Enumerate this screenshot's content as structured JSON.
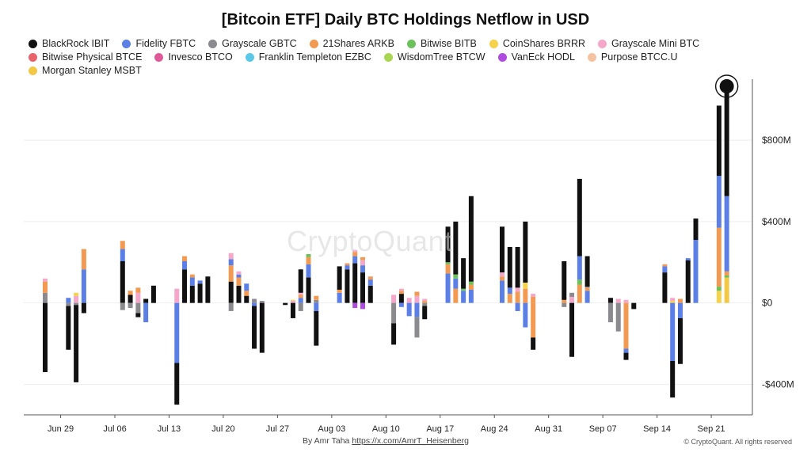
{
  "chart_data": {
    "type": "bar",
    "title": "[Bitcoin ETF] Daily BTC Holdings Netflow in USD",
    "stacked": true,
    "y_unit": "USD (millions)",
    "ylim": [
      -550,
      1100
    ],
    "y_ticks": [
      {
        "value": -400,
        "label": "-$400M"
      },
      {
        "value": 0,
        "label": "$0"
      },
      {
        "value": 400,
        "label": "$400M"
      },
      {
        "value": 800,
        "label": "$800M"
      }
    ],
    "x_ticks": [
      "Jun 29",
      "Jul 06",
      "Jul 13",
      "Jul 20",
      "Jul 27",
      "Aug 03",
      "Aug 10",
      "Aug 17",
      "Aug 24",
      "Aug 31",
      "Sep 07",
      "Sep 14",
      "Sep 21"
    ],
    "start_date": "2025-06-27",
    "legend_position": "top",
    "grid": true,
    "series": [
      {
        "name": "BlackRock IBIT",
        "color": "#111111"
      },
      {
        "name": "Fidelity FBTC",
        "color": "#5b7fe5"
      },
      {
        "name": "Grayscale GBTC",
        "color": "#8a8a8f"
      },
      {
        "name": "21Shares ARKB",
        "color": "#f39a52"
      },
      {
        "name": "Bitwise BITB",
        "color": "#6cc25a"
      },
      {
        "name": "CoinShares BRRR",
        "color": "#f5d24a"
      },
      {
        "name": "Grayscale Mini BTC",
        "color": "#f5a7c9"
      },
      {
        "name": "Bitwise Physical BTCE",
        "color": "#e8636a"
      },
      {
        "name": "Invesco BTCO",
        "color": "#e05a9a"
      },
      {
        "name": "Franklin Templeton EZBC",
        "color": "#5bc8e8"
      },
      {
        "name": "WisdomTree BTCW",
        "color": "#a9d652"
      },
      {
        "name": "VanEck HODL",
        "color": "#b04be0"
      },
      {
        "name": "Purpose BTCC.U",
        "color": "#f6c3a0"
      },
      {
        "name": "Morgan Stanley MSBT",
        "color": "#f2c844"
      }
    ],
    "days": [
      {
        "date": "2025-06-27",
        "flows": {
          "GBTC": 50,
          "ARKB": 55,
          "MINI": 15,
          "IBIT": -340
        }
      },
      {
        "date": "2025-06-30",
        "flows": {
          "FBTC": 25,
          "GBTC": -15,
          "IBIT": -215
        }
      },
      {
        "date": "2025-07-01",
        "flows": {
          "MINI": 35,
          "BRRR": 15,
          "GBTC": -10,
          "IBIT": -380
        }
      },
      {
        "date": "2025-07-02",
        "flows": {
          "FBTC": 165,
          "ARKB": 100,
          "IBIT": -50
        }
      },
      {
        "date": "2025-07-07",
        "flows": {
          "IBIT": 205,
          "FBTC": 60,
          "ARKB": 40,
          "GBTC": -35
        }
      },
      {
        "date": "2025-07-08",
        "flows": {
          "IBIT": 40,
          "ARKB": 20,
          "GBTC": -25
        }
      },
      {
        "date": "2025-07-09",
        "flows": {
          "MINI": 50,
          "ARKB": 25,
          "GBTC": -50,
          "IBIT": -20
        }
      },
      {
        "date": "2025-07-10",
        "flows": {
          "IBIT": 20,
          "FBTC": -95
        }
      },
      {
        "date": "2025-07-11",
        "flows": {
          "IBIT": 85
        }
      },
      {
        "date": "2025-07-14",
        "flows": {
          "MINI": 70,
          "FBTC": -295,
          "IBIT": -205
        }
      },
      {
        "date": "2025-07-15",
        "flows": {
          "IBIT": 165,
          "FBTC": 40,
          "ARKB": 25
        }
      },
      {
        "date": "2025-07-16",
        "flows": {
          "IBIT": 85,
          "FBTC": 40,
          "ARKB": 15
        }
      },
      {
        "date": "2025-07-17",
        "flows": {
          "IBIT": 95,
          "FBTC": 15
        }
      },
      {
        "date": "2025-07-18",
        "flows": {
          "IBIT": 130
        }
      },
      {
        "date": "2025-07-21",
        "flows": {
          "IBIT": 105,
          "ARKB": 80,
          "FBTC": 30,
          "MINI": 30,
          "GBTC": -40
        }
      },
      {
        "date": "2025-07-22",
        "flows": {
          "IBIT": 85,
          "ARKB": 40,
          "FBTC": 15,
          "MINI": 15
        }
      },
      {
        "date": "2025-07-23",
        "flows": {
          "IBIT": 35,
          "ARKB": 25,
          "FBTC": 35
        }
      },
      {
        "date": "2025-07-24",
        "flows": {
          "GBTC": 20,
          "FBTC": -15,
          "IBIT": -210
        }
      },
      {
        "date": "2025-07-25",
        "flows": {
          "GBTC": 10,
          "IBIT": -245
        }
      },
      {
        "date": "2025-07-28",
        "flows": {
          "IBIT": -10
        }
      },
      {
        "date": "2025-07-29",
        "flows": {
          "MINI": 10,
          "BRRR": 5,
          "IBIT": -75
        }
      },
      {
        "date": "2025-07-30",
        "flows": {
          "FBTC": 25,
          "ARKB": 15,
          "MINI": 10,
          "IBIT": 115,
          "GBTC": -40
        }
      },
      {
        "date": "2025-07-31",
        "flows": {
          "IBIT": 125,
          "FBTC": 65,
          "ARKB": 35,
          "BITB": 15
        }
      },
      {
        "date": "2025-08-01",
        "flows": {
          "GBTC": 15,
          "ARKB": 20,
          "FBTC": -40,
          "IBIT": -170
        }
      },
      {
        "date": "2025-08-04",
        "flows": {
          "FBTC": 50,
          "ARKB": 15,
          "IBIT": 115
        }
      },
      {
        "date": "2025-08-05",
        "flows": {
          "IBIT": 165,
          "FBTC": 20,
          "ARKB": 10
        }
      },
      {
        "date": "2025-08-06",
        "flows": {
          "IBIT": 195,
          "FBTC": 35,
          "ARKB": 20,
          "MINI": 10,
          "HODL": -25
        }
      },
      {
        "date": "2025-08-07",
        "flows": {
          "IBIT": 150,
          "FBTC": 35,
          "MINI": 25,
          "ARKB": 15,
          "HODL": -30
        }
      },
      {
        "date": "2025-08-08",
        "flows": {
          "IBIT": 85,
          "FBTC": 30,
          "ARKB": 15
        }
      },
      {
        "date": "2025-08-11",
        "flows": {
          "MINI": 40,
          "GBTC": -100,
          "IBIT": -105
        }
      },
      {
        "date": "2025-08-12",
        "flows": {
          "IBIT": 45,
          "ARKB": 15,
          "MINI": 10,
          "FBTC": -20
        }
      },
      {
        "date": "2025-08-13",
        "flows": {
          "MINI": 25,
          "FBTC": -65
        }
      },
      {
        "date": "2025-08-14",
        "flows": {
          "MINI": 35,
          "ARKB": 20,
          "FBTC": -70,
          "GBTC": -100
        }
      },
      {
        "date": "2025-08-15",
        "flows": {
          "ARKB": 10,
          "MINI": 10,
          "GBTC": -15,
          "IBIT": -65
        }
      },
      {
        "date": "2025-08-18",
        "flows": {
          "FBTC": 145,
          "ARKB": 45,
          "BITB": 10,
          "IBIT": 175
        }
      },
      {
        "date": "2025-08-19",
        "flows": {
          "ARKB": 70,
          "FBTC": 50,
          "BITB": 20,
          "IBIT": 260
        }
      },
      {
        "date": "2025-08-20",
        "flows": {
          "FBTC": 60,
          "BITB": 10,
          "IBIT": 150
        }
      },
      {
        "date": "2025-08-21",
        "flows": {
          "FBTC": 65,
          "ARKB": 25,
          "BITB": 15,
          "IBIT": 420
        }
      },
      {
        "date": "2025-08-25",
        "flows": {
          "FBTC": 110,
          "ARKB": 20,
          "MINI": 20,
          "IBIT": 225
        }
      },
      {
        "date": "2025-08-26",
        "flows": {
          "ARKB": 45,
          "FBTC": 30,
          "IBIT": 200
        }
      },
      {
        "date": "2025-08-27",
        "flows": {
          "ARKB": 55,
          "MINI": 20,
          "FBTC": -40,
          "IBIT": 200
        }
      },
      {
        "date": "2025-08-28",
        "flows": {
          "ARKB": 70,
          "BRRR": 30,
          "FBTC": -120,
          "IBIT": 300
        }
      },
      {
        "date": "2025-08-29",
        "flows": {
          "ARKB": 30,
          "MINI": 15,
          "ARKB_OUT": -170,
          "IBIT": -60
        }
      },
      {
        "date": "2025-09-02",
        "flows": {
          "ARKB": 15,
          "IBIT": 190,
          "GBTC": -20
        }
      },
      {
        "date": "2025-09-03",
        "flows": {
          "MINI": 30,
          "GBTC": 20,
          "IBIT": -265
        }
      },
      {
        "date": "2025-09-04",
        "flows": {
          "ARKB": 90,
          "BITB": 25,
          "FBTC": 115,
          "IBIT": 380
        }
      },
      {
        "date": "2025-09-05",
        "flows": {
          "FBTC": 60,
          "ARKB": 15,
          "GBTC": 5,
          "IBIT": 150
        }
      },
      {
        "date": "2025-09-08",
        "flows": {
          "IBIT": 25,
          "GBTC": -95
        }
      },
      {
        "date": "2025-09-09",
        "flows": {
          "MINI": 20,
          "GBTC": -140
        }
      },
      {
        "date": "2025-09-10",
        "flows": {
          "MINI": 15,
          "ARKB": -225,
          "FBTC": -20,
          "IBIT": -35
        }
      },
      {
        "date": "2025-09-11",
        "flows": {
          "IBIT": -30
        }
      },
      {
        "date": "2025-09-15",
        "flows": {
          "IBIT": 150,
          "FBTC": 30,
          "ARKB": 10
        }
      },
      {
        "date": "2025-09-16",
        "flows": {
          "BRRR": 10,
          "MINI": 15,
          "FBTC": -285,
          "IBIT": -180
        }
      },
      {
        "date": "2025-09-17",
        "flows": {
          "ARKB": 20,
          "FBTC": -75,
          "IBIT": -225
        }
      },
      {
        "date": "2025-09-18",
        "flows": {
          "IBIT": 210,
          "FBTC": 10
        }
      },
      {
        "date": "2025-09-19",
        "flows": {
          "FBTC": 310,
          "IBIT": 105
        }
      },
      {
        "date": "2025-09-22",
        "flows": {
          "BRRR": 60,
          "BITB": 20,
          "ARKB": 290,
          "FBTC": 255,
          "IBIT": 345
        }
      },
      {
        "date": "2025-09-23",
        "flows": {
          "MSBT": 125,
          "BITB": 10,
          "ARKB": 20,
          "FBTC": 370,
          "IBIT": 540
        }
      }
    ],
    "highlight": {
      "date": "2025-09-23",
      "value": 1065
    }
  },
  "credit": {
    "prefix": "By Amr Taha",
    "link": "https://x.com/AmrT_Heisenberg"
  },
  "copyright": "© CryptoQuant. All rights reserved",
  "watermark": "CryptoQuant",
  "colors": {
    "grid": "#eeeeee",
    "axis": "#555555",
    "tick_text": "#222222"
  }
}
